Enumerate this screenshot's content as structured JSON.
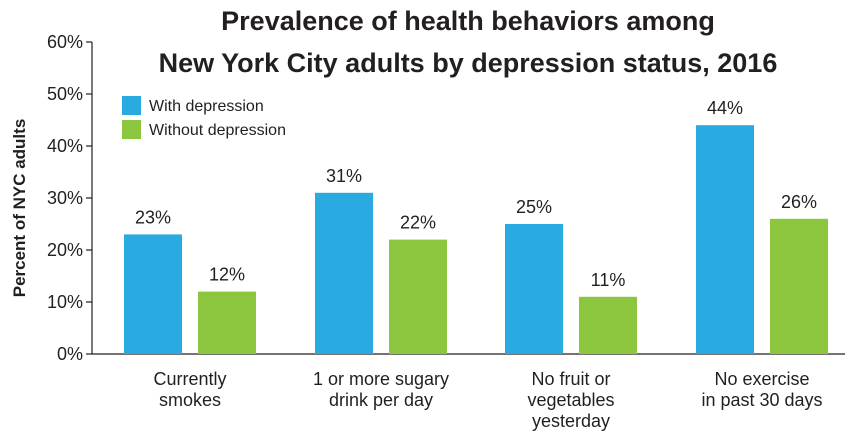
{
  "chart_data": {
    "type": "bar",
    "title_lines": [
      "Prevalence of health behaviors among",
      "New York City adults by depression status, 2016"
    ],
    "ylabel": "Percent of NYC adults",
    "xlabel": "",
    "ylim": [
      0,
      60
    ],
    "yticks": [
      "0%",
      "10%",
      "20%",
      "30%",
      "40%",
      "50%",
      "60%"
    ],
    "categories": [
      [
        "Currently",
        "smokes"
      ],
      [
        "1 or more sugary",
        "drink per day"
      ],
      [
        "No fruit or",
        "vegetables",
        "yesterday"
      ],
      [
        "No exercise",
        "in past 30 days"
      ]
    ],
    "series": [
      {
        "name": "With depression",
        "color": "#29abe2",
        "values": [
          23,
          31,
          25,
          44
        ],
        "labels": [
          "23%",
          "31%",
          "25%",
          "44%"
        ]
      },
      {
        "name": "Without depression",
        "color": "#8cc63f",
        "values": [
          12,
          22,
          11,
          26
        ],
        "labels": [
          "12%",
          "22%",
          "11%",
          "26%"
        ]
      }
    ],
    "grid": false,
    "legend_position": "top-left"
  }
}
